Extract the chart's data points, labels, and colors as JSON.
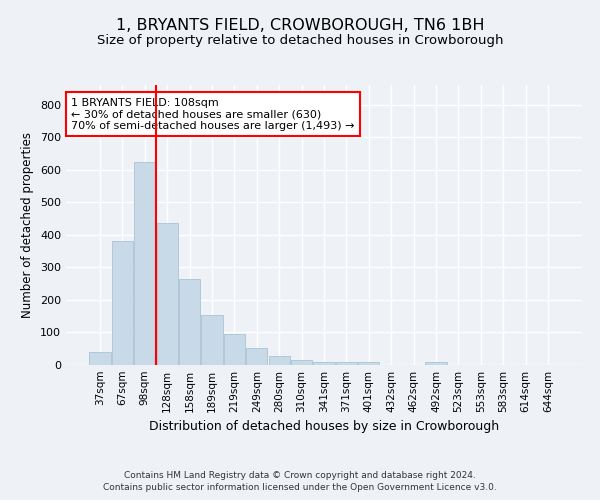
{
  "title": "1, BRYANTS FIELD, CROWBOROUGH, TN6 1BH",
  "subtitle": "Size of property relative to detached houses in Crowborough",
  "xlabel": "Distribution of detached houses by size in Crowborough",
  "ylabel": "Number of detached properties",
  "bar_color": "#c8d9e8",
  "bar_edge_color": "#a0bcd0",
  "categories": [
    "37sqm",
    "67sqm",
    "98sqm",
    "128sqm",
    "158sqm",
    "189sqm",
    "219sqm",
    "249sqm",
    "280sqm",
    "310sqm",
    "341sqm",
    "371sqm",
    "401sqm",
    "432sqm",
    "462sqm",
    "492sqm",
    "523sqm",
    "553sqm",
    "583sqm",
    "614sqm",
    "644sqm"
  ],
  "values": [
    40,
    380,
    625,
    435,
    265,
    155,
    95,
    52,
    27,
    15,
    10,
    10,
    8,
    0,
    0,
    8,
    0,
    0,
    0,
    0,
    0
  ],
  "ylim": [
    0,
    860
  ],
  "yticks": [
    0,
    100,
    200,
    300,
    400,
    500,
    600,
    700,
    800
  ],
  "red_line_x": 2.5,
  "annotation_text": "1 BRYANTS FIELD: 108sqm\n← 30% of detached houses are smaller (630)\n70% of semi-detached houses are larger (1,493) →",
  "footer_line1": "Contains HM Land Registry data © Crown copyright and database right 2024.",
  "footer_line2": "Contains public sector information licensed under the Open Government Licence v3.0.",
  "background_color": "#eef2f7",
  "grid_color": "#ffffff",
  "title_fontsize": 11.5,
  "subtitle_fontsize": 9.5,
  "ylabel_fontsize": 8.5,
  "xlabel_fontsize": 9,
  "tick_fontsize": 7.5,
  "footer_fontsize": 6.5
}
